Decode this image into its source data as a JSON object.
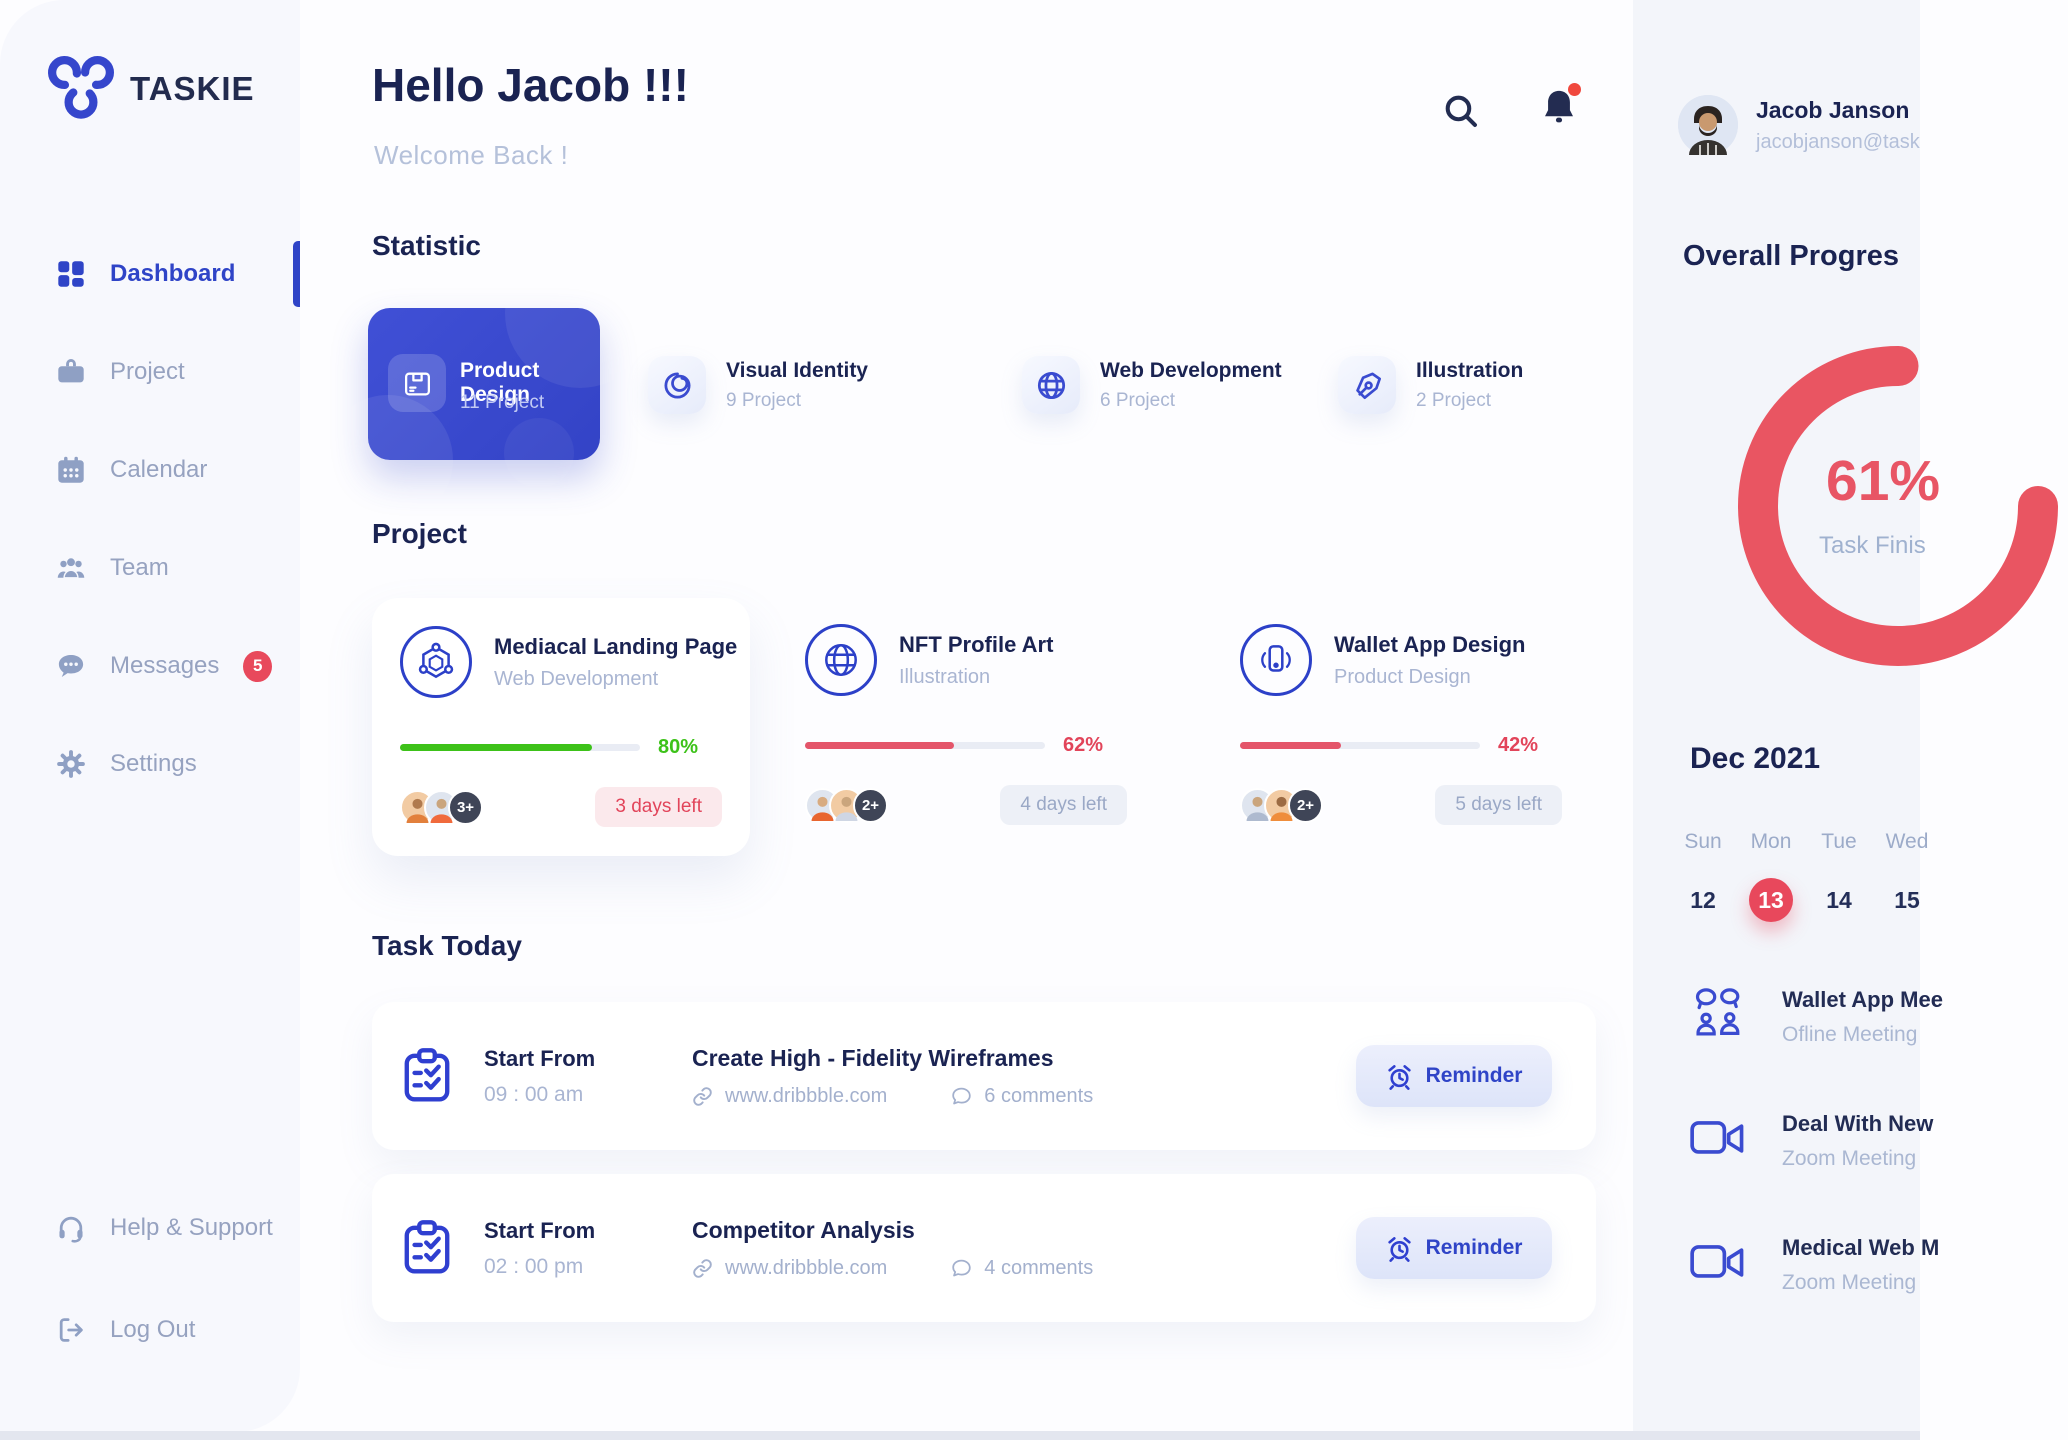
{
  "app": {
    "name": "TASKIE"
  },
  "sidebar": {
    "items": [
      {
        "label": "Dashboard",
        "active": true
      },
      {
        "label": "Project"
      },
      {
        "label": "Calendar"
      },
      {
        "label": "Team"
      },
      {
        "label": "Messages",
        "badge": "5"
      },
      {
        "label": "Settings"
      }
    ],
    "footer_items": [
      {
        "label": "Help & Support"
      },
      {
        "label": "Log Out"
      }
    ]
  },
  "header": {
    "greeting": "Hello Jacob !!!",
    "welcome": "Welcome Back !"
  },
  "statistic": {
    "title": "Statistic",
    "cards": [
      {
        "title": "Product Design",
        "count": "11 Project",
        "featured": true
      },
      {
        "title": "Visual Identity",
        "count": "9 Project"
      },
      {
        "title": "Web Development",
        "count": "6 Project"
      },
      {
        "title": "Illustration",
        "count": "2 Project"
      }
    ]
  },
  "projects": {
    "title": "Project",
    "cards": [
      {
        "title": "Mediacal Landing Page",
        "category": "Web Development",
        "pct": 80,
        "pct_label": "80%",
        "bar_color": "#3dc219",
        "pct_color": "#3dc219",
        "overflow": "3+",
        "days_left": "3 days left",
        "urgent": true
      },
      {
        "title": "NFT Profile Art",
        "category": "Illustration",
        "pct": 62,
        "pct_label": "62%",
        "bar_color": "#e4556a",
        "pct_color": "#e2445a",
        "overflow": "2+",
        "days_left": "4 days left",
        "urgent": false
      },
      {
        "title": "Wallet App Design",
        "category": "Product Design",
        "pct": 42,
        "pct_label": "42%",
        "bar_color": "#e4556a",
        "pct_color": "#e2445a",
        "overflow": "2+",
        "days_left": "5 days left",
        "urgent": false
      }
    ]
  },
  "tasks": {
    "title": "Task Today",
    "items": [
      {
        "start_label": "Start From",
        "time": "09 : 00 am",
        "title": "Create High - Fidelity Wireframes",
        "link": "www.dribbble.com",
        "comments": "6 comments",
        "reminder": "Reminder"
      },
      {
        "start_label": "Start From",
        "time": "02 : 00 pm",
        "title": "Competitor Analysis",
        "link": "www.dribbble.com",
        "comments": "4 comments",
        "reminder": "Reminder"
      }
    ]
  },
  "profile": {
    "name": "Jacob Janson",
    "email": "jacobjanson@task"
  },
  "overall": {
    "title": "Overall Progres",
    "value": "61%",
    "caption": "Task Finis"
  },
  "calendar": {
    "month": "Dec 2021",
    "cols": [
      {
        "day": "Sun",
        "date": "12",
        "selected": false
      },
      {
        "day": "Mon",
        "date": "13",
        "selected": true
      },
      {
        "day": "Tue",
        "date": "14",
        "selected": false
      },
      {
        "day": "Wed",
        "date": "15",
        "selected": false
      }
    ]
  },
  "meetings": [
    {
      "title": "Wallet App Mee",
      "type": "Ofline Meeting"
    },
    {
      "title": "Deal With New",
      "type": "Zoom Meeting"
    },
    {
      "title": "Medical Web M",
      "type": "Zoom Meeting"
    }
  ],
  "colors": {
    "accent": "#3a4bd0",
    "red": "#e8495c",
    "green": "#3dc219"
  }
}
